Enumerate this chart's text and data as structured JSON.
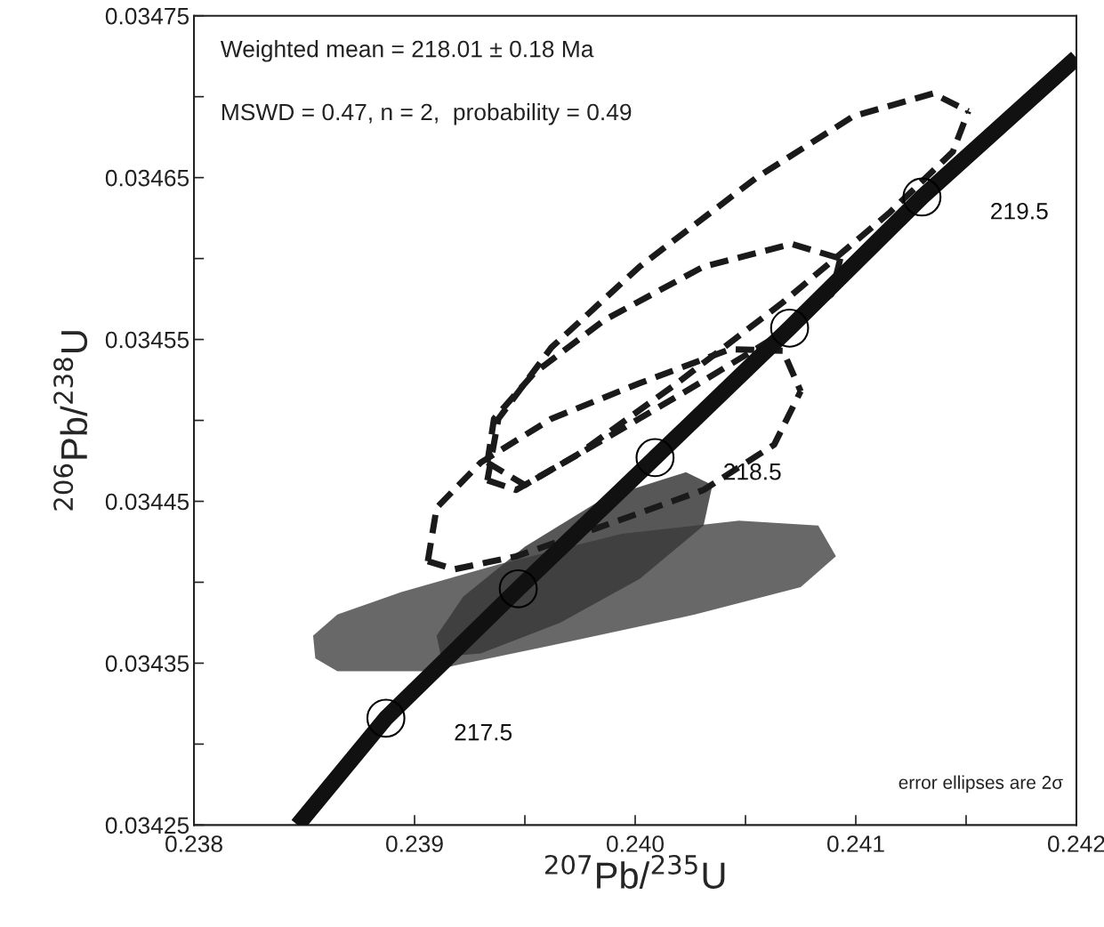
{
  "chart_data": {
    "type": "line",
    "xlabel": "$^{207}$Pb/$^{235}$U",
    "ylabel": "$^{206}$Pb/$^{238}$U",
    "xlim": [
      0.238,
      0.242
    ],
    "ylim": [
      0.03425,
      0.03475
    ],
    "xticks": [
      0.238,
      {
        "value": 0.2385,
        "label": null
      },
      0.239,
      {
        "value": 0.2395,
        "label": null
      },
      {
        "value": 0.24,
        "label": "0.240"
      },
      {
        "value": 0.2405,
        "label": null
      },
      0.241,
      {
        "value": 0.2415,
        "label": null
      },
      {
        "value": 0.242,
        "label": "0.242"
      }
    ],
    "yticks": [
      0.03425,
      {
        "value": 0.0343,
        "label": null
      },
      0.03435,
      {
        "value": 0.0344,
        "label": null
      },
      0.03445,
      {
        "value": 0.0345,
        "label": null
      },
      0.03455,
      {
        "value": 0.0346,
        "label": null
      },
      0.03465,
      {
        "value": 0.0347,
        "label": null
      },
      0.03475
    ],
    "series": [
      {
        "type": "area",
        "color": "#4d4d4d",
        "x": [
          0.23854,
          0.23865,
          0.23894,
          0.23938,
          0.23994,
          0.24047,
          0.24083,
          0.24091,
          0.24075,
          0.24027,
          0.23962,
          0.23906,
          0.23865,
          0.23855,
          0.23854
        ],
        "values": [
          0.034367,
          0.03438,
          0.034394,
          0.034411,
          0.03443,
          0.034438,
          0.034435,
          0.034416,
          0.034397,
          0.03438,
          0.034361,
          0.034345,
          0.034345,
          0.034353,
          0.034367
        ]
      },
      {
        "type": "area",
        "color": "#3a3a3a",
        "x": [
          0.2391,
          0.23922,
          0.2395,
          0.23986,
          0.24023,
          0.24035,
          0.24031,
          0.24002,
          0.23966,
          0.2393,
          0.23912,
          0.2391
        ],
        "values": [
          0.034367,
          0.034391,
          0.034422,
          0.034452,
          0.034468,
          0.03446,
          0.034435,
          0.034402,
          0.034375,
          0.034356,
          0.034354,
          0.034367
        ]
      },
      {
        "line_style": "dashed",
        "color": "#1a1a1a",
        "x": [
          0.23933,
          0.23938,
          0.23962,
          0.24002,
          0.24055,
          0.24099,
          0.24135,
          0.24151
        ],
        "values": [
          0.034463,
          0.034501,
          0.034545,
          0.034595,
          0.03465,
          0.034688,
          0.034702,
          0.034691
        ]
      },
      {
        "line_style": "dashed",
        "color": "#1a1a1a",
        "x": [
          0.23933,
          0.23946,
          0.23974,
          0.24019,
          0.24067,
          0.24115,
          0.24144,
          0.24151
        ],
        "values": [
          0.034463,
          0.034457,
          0.034479,
          0.034523,
          0.034573,
          0.034628,
          0.034666,
          0.034691
        ]
      },
      {
        "line_style": "dashed",
        "color": "#1a1a1a",
        "x": [
          0.23933,
          0.23936,
          0.23954,
          0.23986,
          0.24031,
          0.24071,
          0.24093
        ],
        "values": [
          0.034474,
          0.034501,
          0.034529,
          0.034562,
          0.034595,
          0.034609,
          0.0346
        ]
      },
      {
        "line_style": "dashed",
        "color": "#1a1a1a",
        "x": [
          0.23933,
          0.2395,
          0.23978,
          0.24023,
          0.24063,
          0.24089,
          0.24093
        ],
        "values": [
          0.034474,
          0.03446,
          0.034482,
          0.034518,
          0.034551,
          0.034578,
          0.0346
        ]
      },
      {
        "line_style": "dashed",
        "color": "#1a1a1a",
        "x": [
          0.23906,
          0.2391,
          0.2393,
          0.23962,
          0.24002,
          0.24043,
          0.24067,
          0.24075
        ],
        "values": [
          0.034413,
          0.034446,
          0.034474,
          0.034501,
          0.034523,
          0.034544,
          0.034543,
          0.034518
        ]
      },
      {
        "line_style": "dashed",
        "color": "#1a1a1a",
        "x": [
          0.23906,
          0.23918,
          0.23946,
          0.23986,
          0.24031,
          0.24063,
          0.24075
        ],
        "values": [
          0.034413,
          0.034408,
          0.034416,
          0.034435,
          0.034457,
          0.034485,
          0.034518
        ]
      },
      {
        "type": "line",
        "line_style": "solid",
        "color": "#111111",
        "x": [
          0.23847,
          0.23887,
          0.23947,
          0.24009,
          0.2407,
          0.2413,
          0.242
        ],
        "values": [
          0.03425,
          0.034316,
          0.034396,
          0.034477,
          0.034557,
          0.034638,
          0.034724
        ]
      },
      {
        "type": "scatter",
        "marker": "circle",
        "color": "#000000",
        "x": [
          0.23887,
          0.23947,
          0.24009,
          0.2407,
          0.2413
        ],
        "values": [
          0.034316,
          0.034396,
          0.034477,
          0.034557,
          0.034638
        ]
      }
    ],
    "annotations": [
      "Weighted mean = 218.01 ± 0.18 Ma",
      "MSWD = 0.47, n = 2,  probability = 0.49",
      {
        "text": "217.5",
        "x": 0.23887,
        "y": 0.034316
      },
      {
        "text": "218.5",
        "x": 0.24009,
        "y": 0.034477
      },
      {
        "text": "219.5",
        "x": 0.2413,
        "y": 0.034638
      },
      "error ellipses are 2σ"
    ]
  }
}
